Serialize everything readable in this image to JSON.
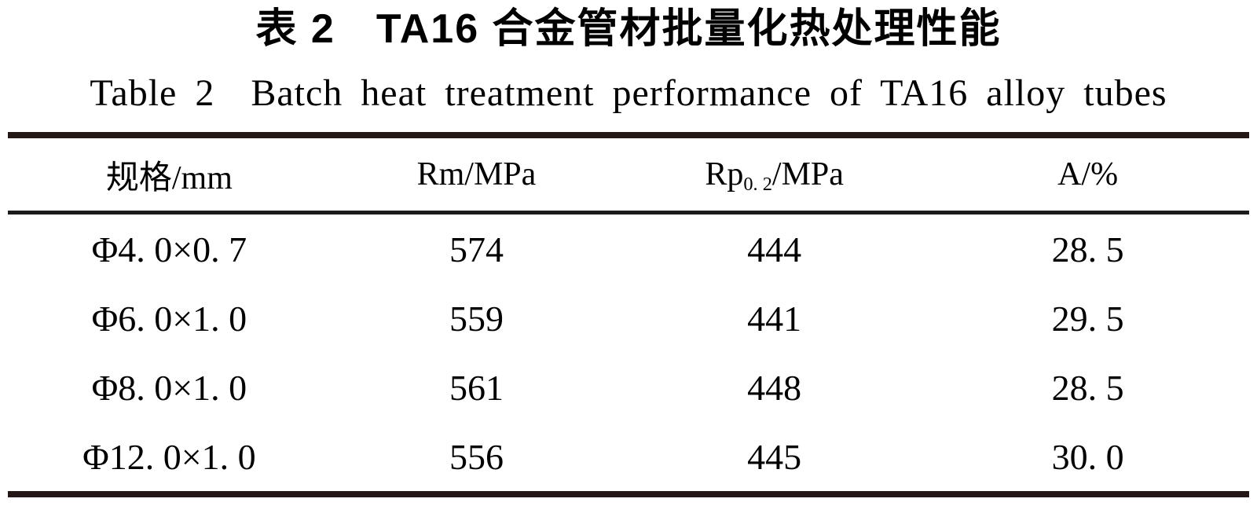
{
  "titles": {
    "zh_prefix": "表 2",
    "zh_main": "TA16 合金管材批量化热处理性能",
    "en_prefix": "Table 2",
    "en_main": "Batch heat treatment performance of TA16 alloy tubes"
  },
  "table": {
    "headers": {
      "spec": "规格/mm",
      "rm": "Rm/MPa",
      "rp_base": "Rp",
      "rp_sub": "0. 2",
      "rp_rest": "/MPa",
      "a": "A/%"
    },
    "rows": [
      {
        "spec": "Φ4. 0×0. 7",
        "rm": "574",
        "rp": "444",
        "a": "28. 5"
      },
      {
        "spec": "Φ6. 0×1. 0",
        "rm": "559",
        "rp": "441",
        "a": "29. 5"
      },
      {
        "spec": "Φ8. 0×1. 0",
        "rm": "561",
        "rp": "448",
        "a": "28. 5"
      },
      {
        "spec": "Φ12. 0×1. 0",
        "rm": "556",
        "rp": "445",
        "a": "30. 0"
      }
    ]
  },
  "colors": {
    "rule_thick": "#231815",
    "rule_thin": "#1b1b1b",
    "text": "#000000",
    "background": "#ffffff"
  }
}
